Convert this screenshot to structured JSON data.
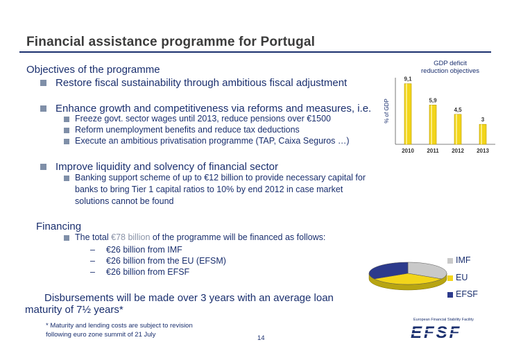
{
  "slide": {
    "title": "Financial assistance programme for Portugal",
    "objectives_heading": "Objectives of the programme",
    "bullets": [
      "Restore fiscal sustainability through ambitious fiscal adjustment",
      "Enhance growth and competitiveness via reforms and measures, i.e."
    ],
    "sub_bullets": [
      "Freeze govt. sector wages until 2013, reduce pensions over €1500",
      "Reform unemployment benefits and reduce tax deductions",
      "Execute an ambitious privatisation programme (TAP, Caixa Seguros …)"
    ],
    "liquidity_bullet": "Improve liquidity and solvency of financial sector",
    "banking_lines": [
      "Banking support scheme of up to €12 billion to provide necessary capital for",
      "banks to bring Tier 1 capital ratios to 10% by end 2012 in case market",
      "solutions cannot be found"
    ],
    "financing_heading": "Financing",
    "financing_pre": "The total ",
    "financing_highlight": "€78 billion",
    "financing_post": " of the programme will be financed as follows:",
    "financing_items": [
      "€26 billion from IMF",
      "€26 billion from the EU (EFSM)",
      "€26 billion from EFSF"
    ],
    "disbursement_line1": "Disbursements will be made over 3 years with an average loan",
    "disbursement_line2": "maturity of 7½ years*",
    "footnote_line1": "* Maturity and lending costs are subject to revision",
    "footnote_line2": "following euro zone summit of 21 July",
    "page_number": "14",
    "logo_caption": "European Financial Stability Facility",
    "logo_text": "EFSF"
  },
  "chart_data": [
    {
      "type": "bar",
      "title": "GDP deficit reduction objectives",
      "title_lines": [
        "GDP deficit",
        "reduction objectives"
      ],
      "ylabel": "% of GDP",
      "categories": [
        "2010",
        "2011",
        "2012",
        "2013"
      ],
      "values": [
        9.1,
        5.9,
        4.5,
        3
      ],
      "value_labels": [
        "9,1",
        "5,9",
        "4,5",
        "3"
      ],
      "ylim": [
        0,
        10
      ],
      "color": "#f2d51a"
    },
    {
      "type": "pie",
      "categories": [
        "IMF",
        "EU",
        "EFSF"
      ],
      "values": [
        26,
        26,
        26
      ],
      "colors": [
        "#c9c9c9",
        "#f2d51a",
        "#2c3a8c"
      ],
      "legend_position": "right"
    }
  ],
  "colors": {
    "primary": "#1a2f6e",
    "bullet": "#7f8fa8",
    "highlight": "#8a93a8"
  }
}
